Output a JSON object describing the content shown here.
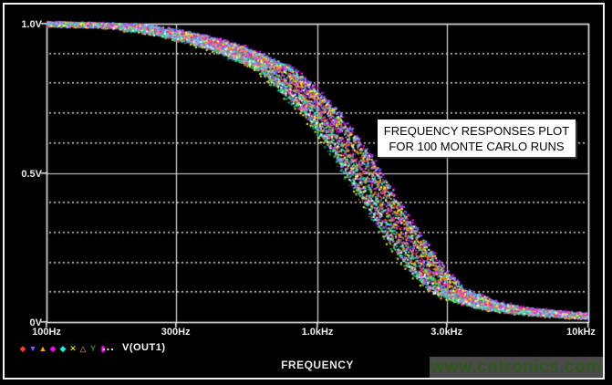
{
  "window": {
    "kind": "simulation-probe-plot",
    "background": "#000000",
    "frame_color": "#f2f2f2"
  },
  "chart_data": {
    "type": "scatter",
    "description": "Low-pass filter frequency responses for 100 Monte Carlo runs, multicolored dotted traces on black PSpice-probe style plot",
    "annotation": [
      "FREQUENCY RESPONSES PLOT",
      "FOR 100 MONTE CARLO RUNS"
    ],
    "x_axis": {
      "label": "FREQUENCY",
      "scale": "log",
      "min_hz": 100,
      "max_hz": 10000,
      "major_ticks": [
        {
          "hz": 100,
          "label": "100Hz"
        },
        {
          "hz": 300,
          "label": "300Hz"
        },
        {
          "hz": 1000,
          "label": "1.0kHz"
        },
        {
          "hz": 3000,
          "label": "3.0kHz"
        },
        {
          "hz": 10000,
          "label": "10kHz"
        }
      ]
    },
    "y_axis": {
      "unit": "V",
      "min": 0,
      "max": 1.0,
      "major_ticks": [
        {
          "v": 1.0,
          "label": "1.0V"
        },
        {
          "v": 0.5,
          "label": "0.5V"
        },
        {
          "v": 0.0,
          "label": "0V"
        }
      ],
      "minor_ticks": [
        0.1,
        0.2,
        0.3,
        0.4,
        0.6,
        0.7,
        0.8,
        0.9
      ]
    },
    "series": {
      "name": "V(OUT1)",
      "monte_carlo_runs": 100,
      "cutoff_tolerance_log10": 0.075,
      "nominal_curve": [
        {
          "f": 100,
          "v": 0.998
        },
        {
          "f": 150,
          "v": 0.995
        },
        {
          "f": 200,
          "v": 0.99
        },
        {
          "f": 300,
          "v": 0.963
        },
        {
          "f": 400,
          "v": 0.935
        },
        {
          "f": 500,
          "v": 0.905
        },
        {
          "f": 700,
          "v": 0.845
        },
        {
          "f": 1000,
          "v": 0.71
        },
        {
          "f": 1200,
          "v": 0.615
        },
        {
          "f": 1500,
          "v": 0.48
        },
        {
          "f": 2000,
          "v": 0.3
        },
        {
          "f": 2500,
          "v": 0.175
        },
        {
          "f": 3000,
          "v": 0.105
        },
        {
          "f": 4000,
          "v": 0.06
        },
        {
          "f": 5000,
          "v": 0.042
        },
        {
          "f": 7000,
          "v": 0.028
        },
        {
          "f": 10000,
          "v": 0.018
        }
      ]
    },
    "trace_colors": [
      "#ffff00",
      "#ff00ff",
      "#00ffff",
      "#ff4444",
      "#44ff44",
      "#5577ff",
      "#ff8800",
      "#ff88cc",
      "#ffffff",
      "#88aaff",
      "#bb66ff",
      "#00cc88"
    ],
    "grid": {
      "major_color": "#dcdcdc",
      "minor_color": "#d0d0d0",
      "minor_style": "dotted",
      "legend_position": "bottom-left"
    }
  },
  "legend": {
    "symbols": [
      {
        "glyph": "◆",
        "color": "#ff3b30"
      },
      {
        "glyph": "▼",
        "color": "#7a5cff"
      },
      {
        "glyph": "▲",
        "color": "#ffa500"
      },
      {
        "glyph": "◆",
        "color": "#ff00ff"
      },
      {
        "glyph": "◆",
        "color": "#00ffff"
      },
      {
        "glyph": "✕",
        "color": "#ffff00"
      },
      {
        "glyph": "△",
        "color": "#ffa0a0"
      },
      {
        "glyph": "Y",
        "color": "#22cc66"
      },
      {
        "glyph": "▮",
        "color": "#ff00ff"
      }
    ],
    "ellipsis": "...",
    "series_label": "V(OUT1)"
  },
  "watermark": {
    "text": "www.cntronics.com",
    "text_color": "#2d5a17",
    "background": "#4a4a4a"
  }
}
